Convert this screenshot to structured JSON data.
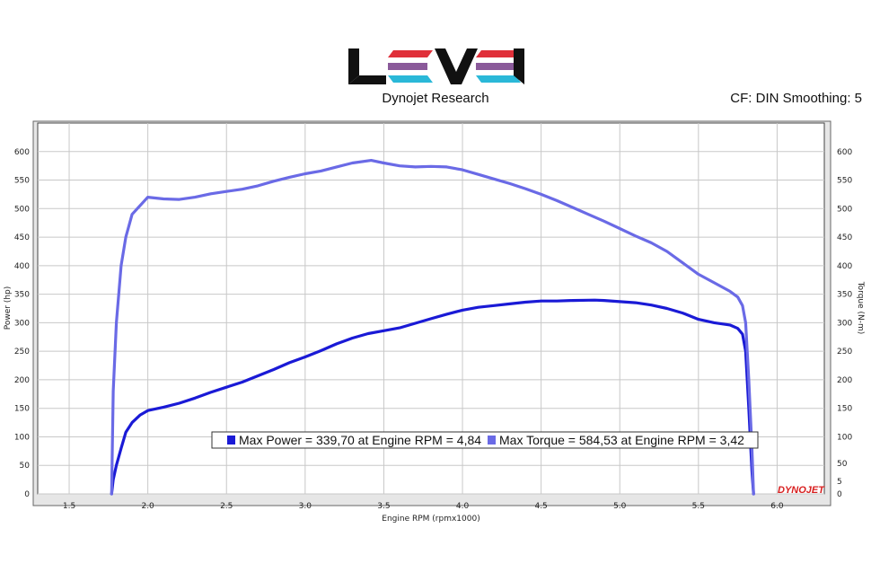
{
  "header": {
    "brand_logo": "LEVEL",
    "subtitle": "Dynojet Research",
    "correction_info": "CF: DIN Smoothing: 5"
  },
  "colors": {
    "power": "#1a1ad6",
    "torque": "#6a6ae6",
    "logo_red": "#e0303a",
    "logo_purple": "#8a5a9a",
    "logo_cyan": "#2ab8d8",
    "brand_red": "#d81e1e"
  },
  "chart_data": {
    "type": "line",
    "title": "",
    "xlabel": "Engine RPM (rpmx1000)",
    "ylabel_left": "Power (hp)",
    "ylabel_right": "Torque (N-m)",
    "xlim": [
      1.3,
      6.3
    ],
    "ylim_left": [
      0,
      650
    ],
    "ylim_right": [
      0,
      650
    ],
    "x_ticks": [
      "1.5",
      "2.0",
      "2.5",
      "3.0",
      "3.5",
      "4.0",
      "4.5",
      "5.0",
      "5.5",
      "6.0"
    ],
    "y_ticks_left": [
      "0",
      "50",
      "100",
      "150",
      "200",
      "250",
      "300",
      "350",
      "400",
      "450",
      "500",
      "550",
      "600"
    ],
    "y_ticks_right": [
      "0",
      "5",
      "50",
      "100",
      "150",
      "200",
      "250",
      "300",
      "350",
      "400",
      "450",
      "500",
      "550",
      "600"
    ],
    "grid": true,
    "series": [
      {
        "name": "Max Power",
        "axis": "left",
        "x": [
          1.77,
          1.78,
          1.8,
          1.83,
          1.86,
          1.9,
          1.95,
          2.0,
          2.1,
          2.2,
          2.3,
          2.4,
          2.5,
          2.6,
          2.7,
          2.8,
          2.9,
          3.0,
          3.1,
          3.2,
          3.3,
          3.4,
          3.5,
          3.6,
          3.7,
          3.8,
          3.9,
          4.0,
          4.1,
          4.2,
          4.3,
          4.4,
          4.5,
          4.6,
          4.7,
          4.8,
          4.84,
          4.9,
          5.0,
          5.1,
          5.2,
          5.3,
          5.4,
          5.5,
          5.6,
          5.7,
          5.75,
          5.78,
          5.8,
          5.82,
          5.84,
          5.85
        ],
        "y": [
          0,
          25,
          50,
          80,
          108,
          125,
          138,
          146,
          152,
          159,
          168,
          178,
          187,
          196,
          207,
          218,
          230,
          240,
          251,
          263,
          273,
          281,
          286,
          291,
          299,
          307,
          315,
          322,
          327,
          330,
          333,
          336,
          338,
          338,
          339,
          339.5,
          339.7,
          339,
          337,
          335,
          331,
          325,
          317,
          306,
          300,
          296,
          290,
          280,
          250,
          150,
          40,
          0
        ]
      },
      {
        "name": "Max Torque",
        "axis": "right",
        "x": [
          1.77,
          1.78,
          1.8,
          1.83,
          1.86,
          1.9,
          1.95,
          2.0,
          2.1,
          2.2,
          2.3,
          2.4,
          2.5,
          2.6,
          2.7,
          2.8,
          2.9,
          3.0,
          3.1,
          3.2,
          3.3,
          3.42,
          3.5,
          3.6,
          3.7,
          3.8,
          3.9,
          4.0,
          4.1,
          4.2,
          4.3,
          4.4,
          4.5,
          4.6,
          4.7,
          4.8,
          4.9,
          5.0,
          5.1,
          5.2,
          5.3,
          5.4,
          5.5,
          5.6,
          5.7,
          5.75,
          5.78,
          5.8,
          5.82,
          5.84,
          5.85
        ],
        "y": [
          0,
          180,
          300,
          400,
          450,
          490,
          505,
          520,
          517,
          516,
          520,
          526,
          530,
          534,
          540,
          548,
          555,
          561,
          566,
          573,
          580,
          584.53,
          580,
          575,
          573,
          574,
          573,
          568,
          560,
          552,
          544,
          535,
          525,
          514,
          502,
          490,
          478,
          465,
          452,
          440,
          425,
          405,
          385,
          370,
          355,
          345,
          330,
          300,
          200,
          80,
          0
        ]
      }
    ],
    "legend": {
      "placement": "bottom-center",
      "entries": [
        "Max Power = 339,70 at Engine RPM = 4,84",
        "Max Torque = 584,53 at Engine RPM = 3,42"
      ]
    },
    "watermark": "DYNOJET"
  }
}
